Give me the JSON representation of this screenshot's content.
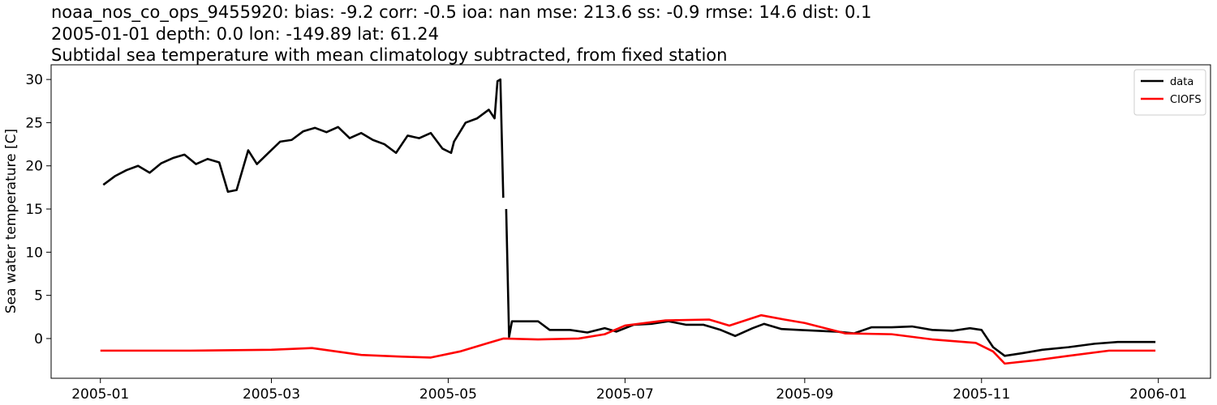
{
  "chart_data": {
    "type": "line",
    "title": "noaa_nos_co_ops_9455920: bias: -9.2  corr: -0.5  ioa: nan  mse: 213.6  ss: -0.9  rmse: 14.6  dist: 0.1",
    "subtitle": "2005-01-01 depth: 0.0 lon: -149.89 lat: 61.24",
    "subtitle2": "Subtidal sea temperature with mean climatology subtracted, from fixed station",
    "ylabel": "Sea water temperature [C]",
    "xlim": [
      "2004-12-15",
      "2006-01-19"
    ],
    "ylim": [
      -4.6,
      31.7
    ],
    "xticks": [
      {
        "value": "2005-01-01",
        "label": "2005-01"
      },
      {
        "value": "2005-03-01",
        "label": "2005-03"
      },
      {
        "value": "2005-05-01",
        "label": "2005-05"
      },
      {
        "value": "2005-07-01",
        "label": "2005-07"
      },
      {
        "value": "2005-09-01",
        "label": "2005-09"
      },
      {
        "value": "2005-11-01",
        "label": "2005-11"
      },
      {
        "value": "2006-01-01",
        "label": "2006-01"
      }
    ],
    "yticks": [
      0,
      5,
      10,
      15,
      20,
      25,
      30
    ],
    "legend": "upper right",
    "grid": false,
    "series": [
      {
        "name": "data",
        "color": "#000000",
        "x": [
          "2005-01-02",
          "2005-01-06",
          "2005-01-10",
          "2005-01-14",
          "2005-01-18",
          "2005-01-22",
          "2005-01-26",
          "2005-01-30",
          "2005-02-03",
          "2005-02-07",
          "2005-02-11",
          "2005-02-14",
          "2005-02-17",
          "2005-02-21",
          "2005-02-24",
          "2005-02-28",
          "2005-03-04",
          "2005-03-08",
          "2005-03-12",
          "2005-03-16",
          "2005-03-20",
          "2005-03-24",
          "2005-03-28",
          "2005-04-01",
          "2005-04-05",
          "2005-04-09",
          "2005-04-13",
          "2005-04-17",
          "2005-04-21",
          "2005-04-25",
          "2005-04-29",
          "2005-05-02",
          "2005-05-03",
          "2005-05-07",
          "2005-05-11",
          "2005-05-15",
          "2005-05-17",
          "2005-05-18",
          "2005-05-19",
          "2005-05-20",
          "2005-05-20",
          "2005-05-21",
          "2005-05-22",
          "2005-05-23",
          "2005-06-01",
          "2005-06-05",
          "2005-06-12",
          "2005-06-18",
          "2005-06-24",
          "2005-06-28",
          "2005-07-04",
          "2005-07-10",
          "2005-07-16",
          "2005-07-22",
          "2005-07-28",
          "2005-08-03",
          "2005-08-08",
          "2005-08-14",
          "2005-08-18",
          "2005-08-24",
          "2005-08-30",
          "2005-09-05",
          "2005-09-12",
          "2005-09-18",
          "2005-09-24",
          "2005-10-01",
          "2005-10-08",
          "2005-10-15",
          "2005-10-22",
          "2005-10-28",
          "2005-11-01",
          "2005-11-05",
          "2005-11-09",
          "2005-11-15",
          "2005-11-22",
          "2005-12-01",
          "2005-12-10",
          "2005-12-18",
          "2005-12-24",
          "2005-12-31"
        ],
        "values": [
          17.8,
          18.8,
          19.5,
          20.0,
          19.2,
          20.3,
          20.9,
          21.3,
          20.2,
          20.8,
          20.4,
          17.0,
          17.2,
          21.8,
          20.2,
          21.5,
          22.8,
          23.0,
          24.0,
          24.4,
          23.9,
          24.5,
          23.2,
          23.8,
          23.0,
          22.5,
          21.5,
          23.5,
          23.2,
          23.8,
          22.0,
          21.5,
          22.8,
          25.0,
          25.5,
          26.5,
          25.5,
          29.8,
          30.0,
          16.3,
          null,
          15.0,
          0.2,
          2.0,
          2.0,
          1.0,
          1.0,
          0.7,
          1.2,
          0.8,
          1.6,
          1.7,
          2.0,
          1.6,
          1.6,
          1.0,
          0.3,
          1.2,
          1.7,
          1.1,
          1.0,
          0.9,
          0.8,
          0.6,
          1.3,
          1.3,
          1.4,
          1.0,
          0.9,
          1.2,
          1.0,
          -1.0,
          -2.0,
          -1.7,
          -1.3,
          -1.0,
          -0.6,
          -0.4,
          -0.4,
          -0.4
        ]
      },
      {
        "name": "CIOFS",
        "color": "#ff0000",
        "x": [
          "2005-01-01",
          "2005-02-01",
          "2005-03-01",
          "2005-03-15",
          "2005-04-01",
          "2005-04-15",
          "2005-04-25",
          "2005-05-05",
          "2005-05-15",
          "2005-05-20",
          "2005-06-01",
          "2005-06-15",
          "2005-06-24",
          "2005-07-01",
          "2005-07-15",
          "2005-07-30",
          "2005-08-06",
          "2005-08-17",
          "2005-08-25",
          "2005-09-01",
          "2005-09-15",
          "2005-10-01",
          "2005-10-15",
          "2005-10-30",
          "2005-11-05",
          "2005-11-09",
          "2005-11-20",
          "2005-12-01",
          "2005-12-15",
          "2005-12-31"
        ],
        "values": [
          -1.4,
          -1.4,
          -1.3,
          -1.1,
          -1.9,
          -2.1,
          -2.2,
          -1.5,
          -0.5,
          0.0,
          -0.1,
          0.0,
          0.5,
          1.5,
          2.1,
          2.2,
          1.5,
          2.7,
          2.2,
          1.8,
          0.6,
          0.5,
          -0.1,
          -0.5,
          -1.5,
          -2.9,
          -2.5,
          -2.0,
          -1.4,
          -1.4
        ]
      }
    ]
  }
}
